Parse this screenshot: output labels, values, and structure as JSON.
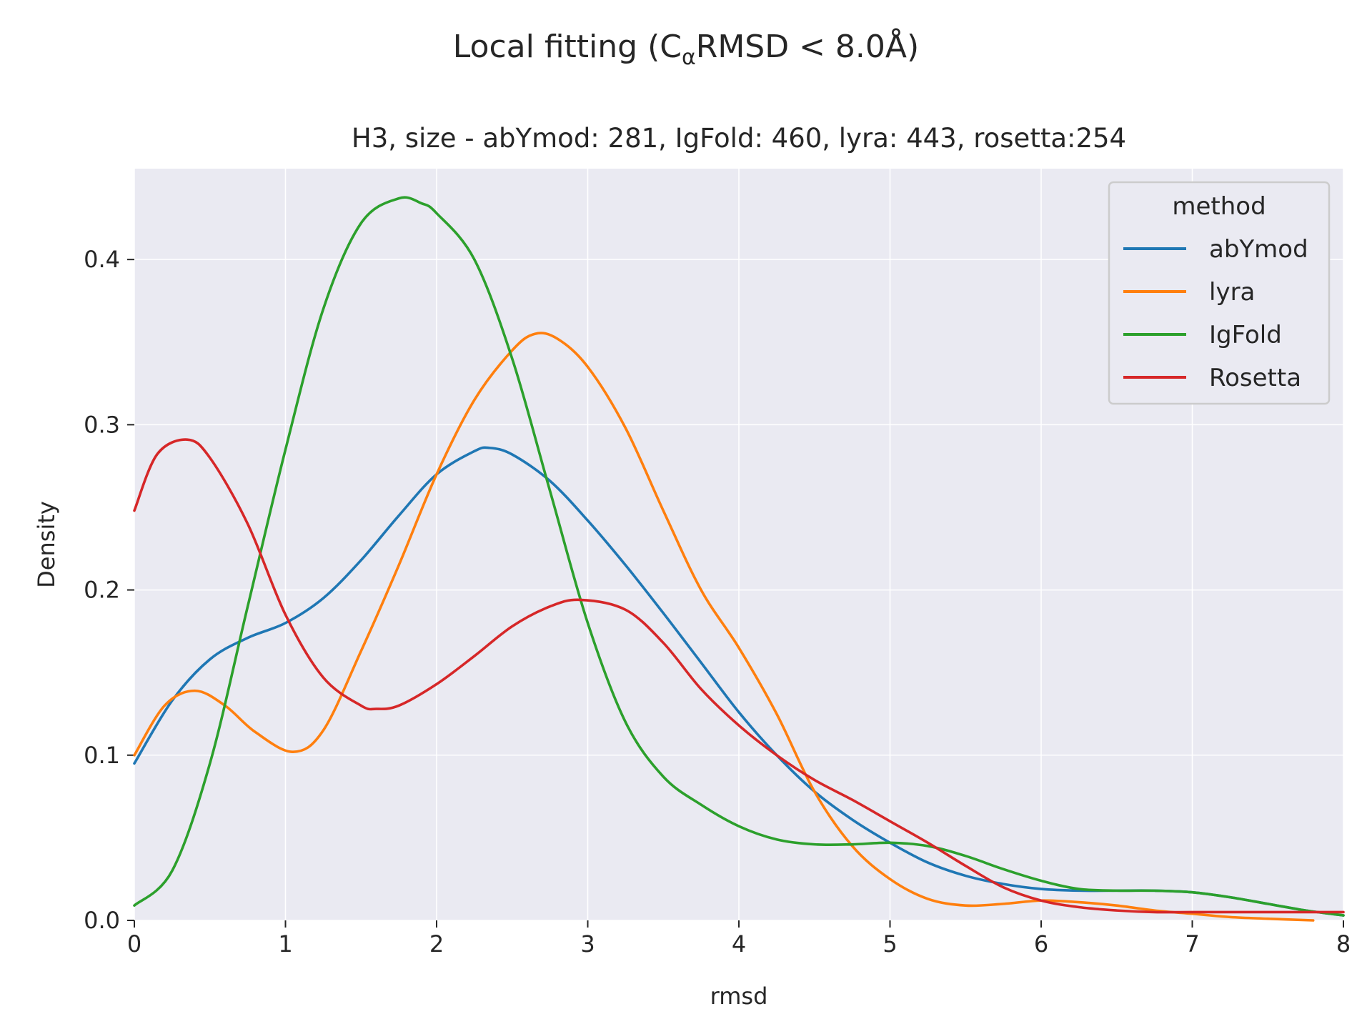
{
  "figure": {
    "suptitle_main": "Local fitting (C",
    "suptitle_sub": "α",
    "suptitle_rest": "RMSD  < 8.0Å)"
  },
  "chart_data": {
    "type": "line",
    "title": "H3, size - abYmod: 281, IgFold: 460, lyra: 443, rosetta:254",
    "xlabel": "rmsd",
    "ylabel": "Density",
    "xlim": [
      0,
      8
    ],
    "ylim": [
      0,
      0.455
    ],
    "xticks": [
      0,
      1,
      2,
      3,
      4,
      5,
      6,
      7,
      8
    ],
    "xtick_labels": [
      "0",
      "1",
      "2",
      "3",
      "4",
      "5",
      "6",
      "7",
      "8"
    ],
    "yticks": [
      0.0,
      0.1,
      0.2,
      0.3,
      0.4
    ],
    "ytick_labels": [
      "0.0",
      "0.1",
      "0.2",
      "0.3",
      "0.4"
    ],
    "grid": true,
    "background": "#eaeaf2",
    "legend": {
      "title": "method",
      "position": "top-right"
    },
    "series": [
      {
        "name": "abYmod",
        "color": "#1f77b4",
        "x": [
          0,
          0.25,
          0.5,
          0.75,
          1.0,
          1.25,
          1.5,
          1.75,
          2.0,
          2.25,
          2.35,
          2.5,
          2.75,
          3.0,
          3.25,
          3.5,
          3.75,
          4.0,
          4.25,
          4.5,
          4.75,
          5.0,
          5.25,
          5.5,
          5.75,
          6.0,
          6.25,
          6.5,
          6.75,
          7.0,
          7.25,
          7.5,
          7.75,
          8.0
        ],
        "y": [
          0.095,
          0.133,
          0.158,
          0.171,
          0.18,
          0.195,
          0.218,
          0.245,
          0.27,
          0.284,
          0.286,
          0.282,
          0.266,
          0.242,
          0.215,
          0.186,
          0.156,
          0.126,
          0.1,
          0.078,
          0.061,
          0.047,
          0.035,
          0.027,
          0.022,
          0.019,
          0.018,
          0.018,
          0.018,
          0.017,
          0.014,
          0.01,
          0.006,
          0.003
        ]
      },
      {
        "name": "lyra",
        "color": "#ff7f0e",
        "x": [
          0,
          0.2,
          0.4,
          0.6,
          0.8,
          1.05,
          1.25,
          1.5,
          1.75,
          2.0,
          2.25,
          2.5,
          2.65,
          2.8,
          3.0,
          3.25,
          3.5,
          3.75,
          4.0,
          4.25,
          4.5,
          4.75,
          5.0,
          5.25,
          5.5,
          5.75,
          6.0,
          6.25,
          6.5,
          6.75,
          7.0,
          7.25,
          7.5,
          7.8
        ],
        "y": [
          0.1,
          0.13,
          0.139,
          0.13,
          0.114,
          0.102,
          0.115,
          0.163,
          0.215,
          0.27,
          0.315,
          0.345,
          0.355,
          0.352,
          0.335,
          0.298,
          0.248,
          0.2,
          0.165,
          0.125,
          0.078,
          0.045,
          0.025,
          0.013,
          0.009,
          0.01,
          0.012,
          0.011,
          0.009,
          0.006,
          0.004,
          0.002,
          0.001,
          0.0
        ]
      },
      {
        "name": "IgFold",
        "color": "#2ca02c",
        "x": [
          0,
          0.25,
          0.5,
          0.75,
          1.0,
          1.25,
          1.5,
          1.75,
          1.9,
          2.0,
          2.25,
          2.5,
          2.75,
          3.0,
          3.25,
          3.5,
          3.75,
          4.0,
          4.25,
          4.5,
          4.75,
          5.0,
          5.25,
          5.5,
          5.75,
          6.0,
          6.25,
          6.5,
          6.75,
          7.0,
          7.25,
          7.5,
          7.75,
          8.0
        ],
        "y": [
          0.009,
          0.03,
          0.095,
          0.19,
          0.285,
          0.37,
          0.422,
          0.437,
          0.434,
          0.428,
          0.4,
          0.34,
          0.26,
          0.18,
          0.12,
          0.087,
          0.07,
          0.057,
          0.049,
          0.046,
          0.046,
          0.047,
          0.045,
          0.039,
          0.031,
          0.024,
          0.019,
          0.018,
          0.018,
          0.017,
          0.014,
          0.01,
          0.006,
          0.003
        ]
      },
      {
        "name": "Rosetta",
        "color": "#d62728",
        "x": [
          0,
          0.15,
          0.35,
          0.5,
          0.75,
          1.0,
          1.25,
          1.5,
          1.6,
          1.75,
          2.0,
          2.25,
          2.5,
          2.75,
          2.95,
          3.25,
          3.5,
          3.75,
          4.0,
          4.25,
          4.5,
          4.75,
          5.0,
          5.25,
          5.5,
          5.75,
          6.0,
          6.25,
          6.5,
          6.75,
          7.0,
          7.25,
          7.5,
          8.0
        ],
        "y": [
          0.248,
          0.282,
          0.291,
          0.28,
          0.24,
          0.185,
          0.147,
          0.13,
          0.128,
          0.13,
          0.143,
          0.16,
          0.178,
          0.19,
          0.194,
          0.188,
          0.168,
          0.14,
          0.118,
          0.1,
          0.085,
          0.073,
          0.06,
          0.047,
          0.033,
          0.02,
          0.012,
          0.008,
          0.006,
          0.005,
          0.005,
          0.005,
          0.005,
          0.005
        ]
      }
    ]
  }
}
